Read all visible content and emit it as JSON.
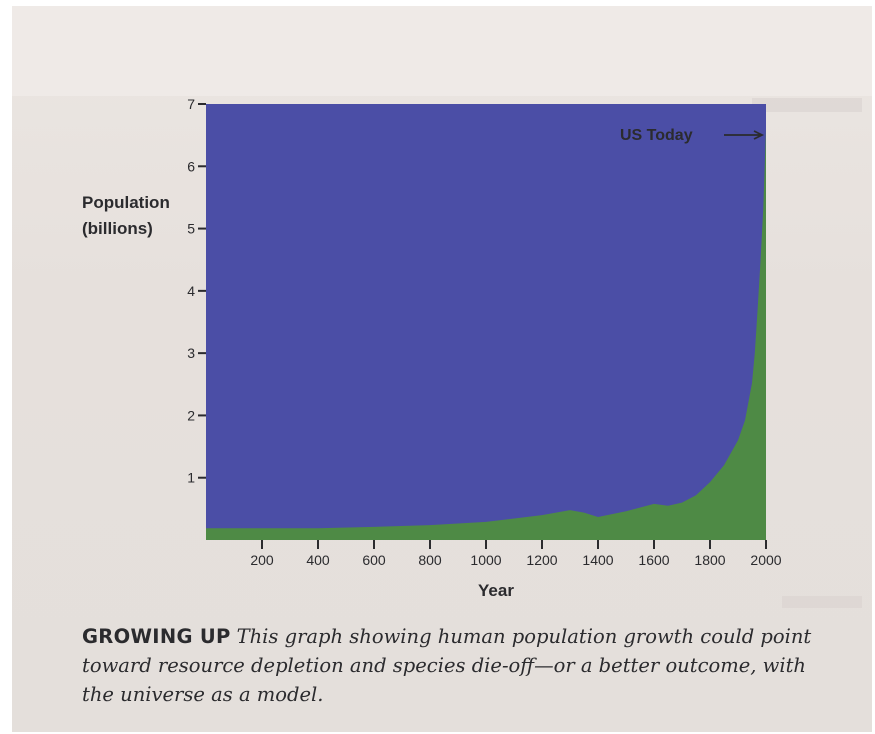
{
  "chart_data": {
    "type": "area",
    "title": "",
    "xlabel": "Year",
    "ylabel": "Population (billions)",
    "ylabel_lines": [
      "Population",
      "(billions)"
    ],
    "xlim": [
      0,
      2000
    ],
    "ylim": [
      0,
      7
    ],
    "x_ticks": [
      200,
      400,
      600,
      800,
      1000,
      1200,
      1400,
      1600,
      1800,
      2000
    ],
    "y_ticks": [
      1,
      2,
      3,
      4,
      5,
      6,
      7
    ],
    "grid": false,
    "x": [
      0,
      200,
      400,
      600,
      800,
      1000,
      1200,
      1300,
      1350,
      1400,
      1500,
      1600,
      1650,
      1700,
      1750,
      1800,
      1850,
      1900,
      1925,
      1950,
      1960,
      1970,
      1980,
      1990,
      2000
    ],
    "series": [
      {
        "values": [
          0.19,
          0.19,
          0.19,
          0.21,
          0.24,
          0.29,
          0.4,
          0.48,
          0.44,
          0.37,
          0.46,
          0.58,
          0.55,
          0.6,
          0.72,
          0.93,
          1.2,
          1.6,
          1.92,
          2.52,
          3.0,
          3.7,
          4.45,
          5.3,
          6.6
        ]
      }
    ],
    "colors": {
      "background": "#4b4ea6",
      "area": "#4e8a45",
      "text": "#2b2b2e"
    },
    "annotations": [
      {
        "text": "US Today",
        "x": 2000,
        "y": 6.6
      }
    ]
  },
  "caption": {
    "lead": "GROWING UP",
    "text": "This graph showing human population growth could point toward resource depletion and species die-off—or a better outcome, with the universe as a model."
  }
}
